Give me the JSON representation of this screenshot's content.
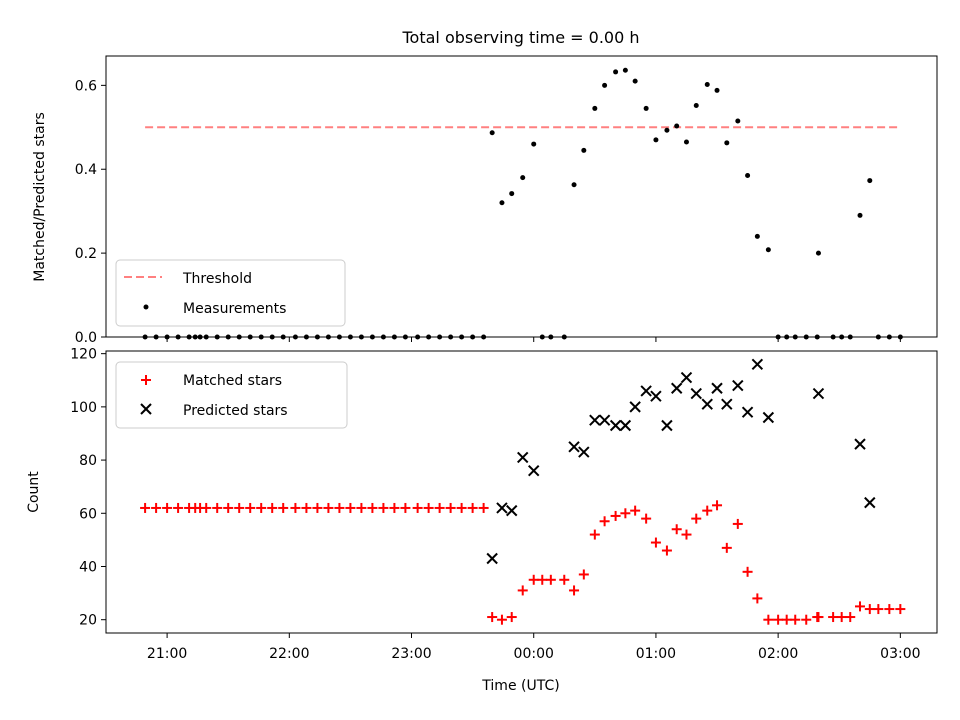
{
  "chart_data": [
    {
      "type": "scatter",
      "title": "Total observing time = 0.00 h",
      "xlabel": "",
      "ylabel": "Matched/Predicted stars",
      "x_unit": "time (UTC, hours since 00:00; 21:00 = -3)",
      "xlim": [
        -3.5,
        3.3
      ],
      "ylim": [
        0,
        0.67
      ],
      "yticks": [
        0.0,
        0.2,
        0.4,
        0.6
      ],
      "ytick_labels": [
        "0.0",
        "0.2",
        "0.4",
        "0.6"
      ],
      "legend_position": "lower-left",
      "threshold": {
        "name": "Threshold",
        "value": 0.5,
        "x_range": [
          -3.18,
          3.0
        ],
        "color": "#ff8080"
      },
      "series": [
        {
          "name": "Measurements",
          "color": "#000000",
          "marker": "dot",
          "points": [
            [
              -3.18,
              0
            ],
            [
              -3.09,
              0
            ],
            [
              -3.0,
              0
            ],
            [
              -2.91,
              0
            ],
            [
              -2.82,
              0
            ],
            [
              -2.77,
              0
            ],
            [
              -2.73,
              0
            ],
            [
              -2.68,
              0
            ],
            [
              -2.59,
              0
            ],
            [
              -2.5,
              0
            ],
            [
              -2.41,
              0
            ],
            [
              -2.32,
              0
            ],
            [
              -2.23,
              0
            ],
            [
              -2.14,
              0
            ],
            [
              -2.05,
              0
            ],
            [
              -1.95,
              0
            ],
            [
              -1.86,
              0
            ],
            [
              -1.77,
              0
            ],
            [
              -1.68,
              0
            ],
            [
              -1.59,
              0
            ],
            [
              -1.5,
              0
            ],
            [
              -1.41,
              0
            ],
            [
              -1.32,
              0
            ],
            [
              -1.23,
              0
            ],
            [
              -1.14,
              0
            ],
            [
              -1.05,
              0
            ],
            [
              -0.95,
              0
            ],
            [
              -0.86,
              0
            ],
            [
              -0.77,
              0
            ],
            [
              -0.68,
              0
            ],
            [
              -0.59,
              0
            ],
            [
              -0.5,
              0
            ],
            [
              -0.41,
              0
            ],
            [
              -0.34,
              0.487
            ],
            [
              -0.26,
              0.32
            ],
            [
              -0.18,
              0.342
            ],
            [
              -0.09,
              0.38
            ],
            [
              0.0,
              0.46
            ],
            [
              0.07,
              0
            ],
            [
              0.14,
              0
            ],
            [
              0.25,
              0
            ],
            [
              0.33,
              0.363
            ],
            [
              0.41,
              0.445
            ],
            [
              0.5,
              0.545
            ],
            [
              0.58,
              0.6
            ],
            [
              0.67,
              0.632
            ],
            [
              0.75,
              0.636
            ],
            [
              0.83,
              0.61
            ],
            [
              0.92,
              0.545
            ],
            [
              1.0,
              0.47
            ],
            [
              1.09,
              0.493
            ],
            [
              1.17,
              0.503
            ],
            [
              1.25,
              0.465
            ],
            [
              1.33,
              0.552
            ],
            [
              1.42,
              0.602
            ],
            [
              1.5,
              0.588
            ],
            [
              1.58,
              0.463
            ],
            [
              1.67,
              0.515
            ],
            [
              1.75,
              0.385
            ],
            [
              1.83,
              0.24
            ],
            [
              1.92,
              0.208
            ],
            [
              2.0,
              0
            ],
            [
              2.07,
              0
            ],
            [
              2.14,
              0
            ],
            [
              2.23,
              0
            ],
            [
              2.32,
              0
            ],
            [
              2.33,
              0.2
            ],
            [
              2.45,
              0
            ],
            [
              2.52,
              0
            ],
            [
              2.59,
              0
            ],
            [
              2.67,
              0.29
            ],
            [
              2.75,
              0.373
            ],
            [
              2.82,
              0
            ],
            [
              2.91,
              0
            ],
            [
              3.0,
              0
            ]
          ]
        }
      ]
    },
    {
      "type": "scatter",
      "title": "",
      "xlabel": "Time (UTC)",
      "ylabel": "Count",
      "x_unit": "time (UTC, hours since 00:00; 21:00 = -3)",
      "xlim": [
        -3.5,
        3.3
      ],
      "ylim": [
        15,
        121
      ],
      "xticks": [
        -3,
        -2,
        -1,
        0,
        1,
        2,
        3
      ],
      "xtick_labels": [
        "21:00",
        "22:00",
        "23:00",
        "00:00",
        "01:00",
        "02:00",
        "03:00"
      ],
      "yticks": [
        20,
        40,
        60,
        80,
        100,
        120
      ],
      "ytick_labels": [
        "20",
        "40",
        "60",
        "80",
        "100",
        "120"
      ],
      "legend_position": "upper-left",
      "series": [
        {
          "name": "Matched stars",
          "color": "#ff0000",
          "marker": "plus",
          "points": [
            [
              -3.18,
              62
            ],
            [
              -3.09,
              62
            ],
            [
              -3.0,
              62
            ],
            [
              -2.91,
              62
            ],
            [
              -2.82,
              62
            ],
            [
              -2.77,
              62
            ],
            [
              -2.73,
              62
            ],
            [
              -2.68,
              62
            ],
            [
              -2.59,
              62
            ],
            [
              -2.5,
              62
            ],
            [
              -2.41,
              62
            ],
            [
              -2.32,
              62
            ],
            [
              -2.23,
              62
            ],
            [
              -2.14,
              62
            ],
            [
              -2.05,
              62
            ],
            [
              -1.95,
              62
            ],
            [
              -1.86,
              62
            ],
            [
              -1.77,
              62
            ],
            [
              -1.68,
              62
            ],
            [
              -1.59,
              62
            ],
            [
              -1.5,
              62
            ],
            [
              -1.41,
              62
            ],
            [
              -1.32,
              62
            ],
            [
              -1.23,
              62
            ],
            [
              -1.14,
              62
            ],
            [
              -1.05,
              62
            ],
            [
              -0.95,
              62
            ],
            [
              -0.86,
              62
            ],
            [
              -0.77,
              62
            ],
            [
              -0.68,
              62
            ],
            [
              -0.59,
              62
            ],
            [
              -0.5,
              62
            ],
            [
              -0.41,
              62
            ],
            [
              -0.34,
              21
            ],
            [
              -0.26,
              20
            ],
            [
              -0.18,
              21
            ],
            [
              -0.09,
              31
            ],
            [
              0.0,
              35
            ],
            [
              0.07,
              35
            ],
            [
              0.14,
              35
            ],
            [
              0.25,
              35
            ],
            [
              0.33,
              31
            ],
            [
              0.41,
              37
            ],
            [
              0.5,
              52
            ],
            [
              0.58,
              57
            ],
            [
              0.67,
              59
            ],
            [
              0.75,
              60
            ],
            [
              0.83,
              61
            ],
            [
              0.92,
              58
            ],
            [
              1.0,
              49
            ],
            [
              1.09,
              46
            ],
            [
              1.17,
              54
            ],
            [
              1.25,
              52
            ],
            [
              1.33,
              58
            ],
            [
              1.42,
              61
            ],
            [
              1.5,
              63
            ],
            [
              1.58,
              47
            ],
            [
              1.67,
              56
            ],
            [
              1.75,
              38
            ],
            [
              1.83,
              28
            ],
            [
              1.92,
              20
            ],
            [
              2.0,
              20
            ],
            [
              2.07,
              20
            ],
            [
              2.14,
              20
            ],
            [
              2.23,
              20
            ],
            [
              2.32,
              21
            ],
            [
              2.33,
              21
            ],
            [
              2.45,
              21
            ],
            [
              2.52,
              21
            ],
            [
              2.59,
              21
            ],
            [
              2.67,
              25
            ],
            [
              2.75,
              24
            ],
            [
              2.82,
              24
            ],
            [
              2.91,
              24
            ],
            [
              3.0,
              24
            ]
          ]
        },
        {
          "name": "Predicted stars",
          "color": "#000000",
          "marker": "cross",
          "points": [
            [
              -0.34,
              43
            ],
            [
              -0.26,
              62
            ],
            [
              -0.18,
              61
            ],
            [
              -0.09,
              81
            ],
            [
              0.0,
              76
            ],
            [
              0.33,
              85
            ],
            [
              0.41,
              83
            ],
            [
              0.5,
              95
            ],
            [
              0.58,
              95
            ],
            [
              0.67,
              93
            ],
            [
              0.75,
              93
            ],
            [
              0.83,
              100
            ],
            [
              0.92,
              106
            ],
            [
              1.0,
              104
            ],
            [
              1.09,
              93
            ],
            [
              1.17,
              107
            ],
            [
              1.25,
              111
            ],
            [
              1.33,
              105
            ],
            [
              1.42,
              101
            ],
            [
              1.5,
              107
            ],
            [
              1.58,
              101
            ],
            [
              1.67,
              108
            ],
            [
              1.75,
              98
            ],
            [
              1.83,
              116
            ],
            [
              1.92,
              96
            ],
            [
              2.33,
              105
            ],
            [
              2.67,
              86
            ],
            [
              2.75,
              64
            ]
          ]
        }
      ]
    }
  ]
}
